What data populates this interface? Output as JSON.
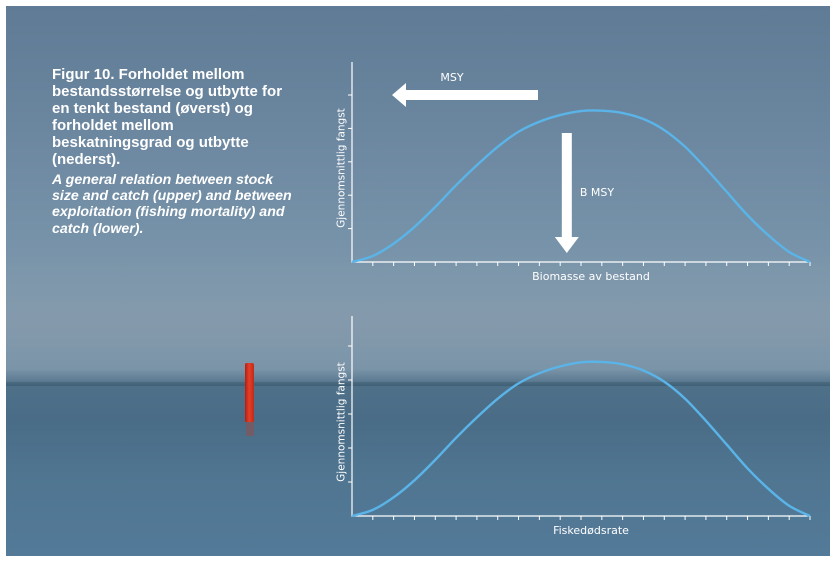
{
  "caption": {
    "norwegian": "Figur 10. Forholdet mellom bestandsstørrelse og utbytte for en tenkt bestand (øverst) og forholdet mellom beskatningsgrad og utbytte (nederst).",
    "english": "A general relation between stock size and catch (upper) and between exploitation (fishing mortality) and catch (lower)."
  },
  "colors": {
    "curve": "#5ab4e8",
    "axes": "#ffffff",
    "arrow": "#ffffff",
    "buoy": "#d8341f"
  },
  "chart_data": [
    {
      "type": "line",
      "title": "",
      "xlabel": "Biomasse av bestand",
      "ylabel": "Gjennomsnittlig fangst",
      "xlim": [
        0,
        22
      ],
      "ylim": [
        0,
        5
      ],
      "grid": false,
      "x_tick_count": 22,
      "y_tick_count": 5,
      "series": [
        {
          "x": [
            0,
            1,
            2,
            3,
            4,
            5,
            6,
            7,
            8,
            9,
            10,
            11,
            12,
            13,
            14,
            15,
            16,
            17,
            18,
            19,
            20,
            21,
            22
          ],
          "y": [
            0,
            0.18,
            0.55,
            1.05,
            1.65,
            2.3,
            2.9,
            3.45,
            3.9,
            4.2,
            4.4,
            4.52,
            4.53,
            4.46,
            4.28,
            3.95,
            3.45,
            2.8,
            2.1,
            1.4,
            0.8,
            0.3,
            0
          ]
        }
      ],
      "annotations": [
        {
          "text": "MSY",
          "type": "arrow-left",
          "at_y": 5
        },
        {
          "text": "B MSY",
          "type": "arrow-down",
          "at_x": 12
        }
      ]
    },
    {
      "type": "line",
      "title": "",
      "xlabel": "Fiskedødsrate",
      "ylabel": "Gjennomsnittlig fangst",
      "xlim": [
        0,
        22
      ],
      "ylim": [
        0,
        5
      ],
      "grid": false,
      "x_tick_count": 22,
      "y_tick_count": 5,
      "series": [
        {
          "x": [
            0,
            1,
            2,
            3,
            4,
            5,
            6,
            7,
            8,
            9,
            10,
            11,
            12,
            13,
            14,
            15,
            16,
            17,
            18,
            19,
            20,
            21,
            22
          ],
          "y": [
            0,
            0.18,
            0.55,
            1.05,
            1.65,
            2.3,
            2.9,
            3.45,
            3.9,
            4.2,
            4.4,
            4.52,
            4.53,
            4.46,
            4.28,
            3.95,
            3.45,
            2.8,
            2.1,
            1.4,
            0.8,
            0.3,
            0
          ]
        }
      ]
    }
  ]
}
